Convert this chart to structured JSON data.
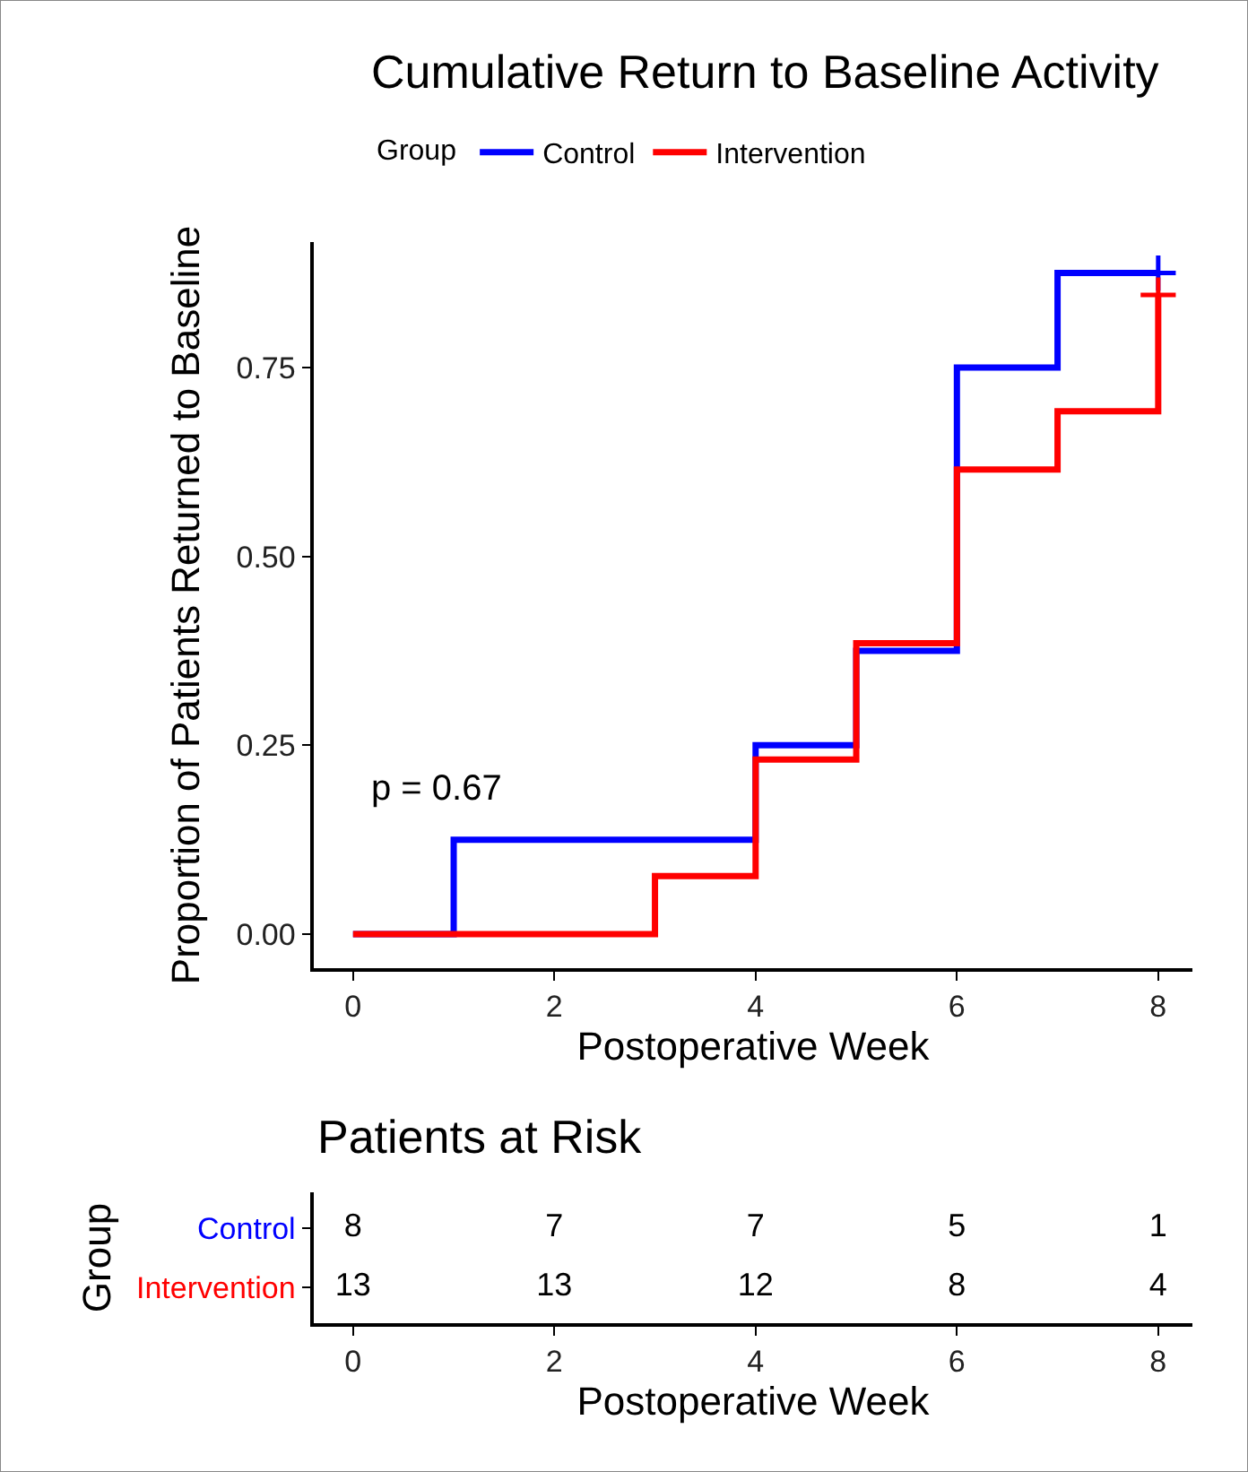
{
  "chart_data": [
    {
      "type": "step",
      "title": "Cumulative Return to Baseline Activity",
      "xlabel": "Postoperative Week",
      "ylabel": "Proportion of Patients Returned to Baseline",
      "legend_title": "Group",
      "legend": "top",
      "line_style": "solid",
      "marker": "none",
      "xlim": [
        -0.39,
        8.34
      ],
      "xticks": [
        0,
        2,
        4,
        6,
        8
      ],
      "ylim": [
        -0.045,
        0.916
      ],
      "yticks": [
        {
          "value": 0,
          "label": "0.00"
        },
        {
          "value": 0.25,
          "label": "0.25"
        },
        {
          "value": 0.5,
          "label": "0.50"
        },
        {
          "value": 0.75,
          "label": "0.75"
        }
      ],
      "annotations": [
        "p = 0.67"
      ],
      "series": [
        {
          "name": "Control",
          "color": "#0000ff",
          "x": [
            0,
            1,
            4,
            5,
            6,
            7,
            8
          ],
          "values": [
            0,
            0.125,
            0.25,
            0.375,
            0.75,
            0.875,
            0.875
          ]
        },
        {
          "name": "Intervention",
          "color": "#ff0000",
          "x": [
            0,
            3,
            4,
            5,
            6,
            7,
            8
          ],
          "values": [
            0,
            0.077,
            0.231,
            0.385,
            0.615,
            0.692,
            0.846
          ]
        },
        {
          "type": "scatter",
          "marker": "cross",
          "color": "#0000ff",
          "x": [
            8
          ],
          "values": [
            0.875
          ]
        },
        {
          "type": "scatter",
          "marker": "cross",
          "color": "#ff0000",
          "x": [
            8
          ],
          "values": [
            0.846
          ]
        }
      ]
    },
    {
      "type": "heatmap",
      "title": "Patients at Risk",
      "xlabel": "Postoperative Week",
      "ylabel": "Group",
      "categories": [
        "0",
        "2",
        "4",
        "6",
        "8"
      ],
      "y_categories": [
        "Control",
        "Intervention"
      ],
      "data_labels": true,
      "cells": [
        [
          8,
          7,
          7,
          5,
          1
        ],
        [
          13,
          13,
          12,
          8,
          4
        ]
      ]
    }
  ]
}
